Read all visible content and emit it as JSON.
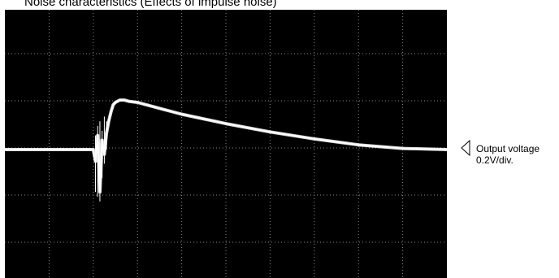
{
  "chart_data": {
    "type": "line",
    "title": "Noise characteristics (Effects of impulse noise)",
    "channel_label": "Output voltage",
    "scale_label": "0.2V/div.",
    "grid": true,
    "divisions": {
      "x": 10,
      "y": 6
    },
    "ylim": [
      -0.6,
      0.6
    ],
    "xlim": [
      0,
      10
    ],
    "trace_color": "#ffffff",
    "background_color": "#000000",
    "grid_color": "#8a8a8a",
    "series": [
      {
        "x": [
          0,
          2.0,
          2.05,
          2.1,
          2.15,
          2.2,
          2.25,
          2.3,
          2.35,
          2.4,
          2.45,
          2.5,
          2.6,
          2.7,
          2.8,
          3.0,
          3.5,
          4.0,
          5.0,
          6.0,
          7.0,
          8.0,
          9.0,
          10.0
        ],
        "values": [
          0.0,
          0.0,
          -0.05,
          0.06,
          -0.18,
          0.04,
          -0.02,
          0.07,
          0.12,
          0.16,
          0.19,
          0.2,
          0.21,
          0.21,
          0.205,
          0.2,
          0.175,
          0.15,
          0.11,
          0.075,
          0.045,
          0.02,
          0.005,
          0.0
        ]
      }
    ]
  }
}
